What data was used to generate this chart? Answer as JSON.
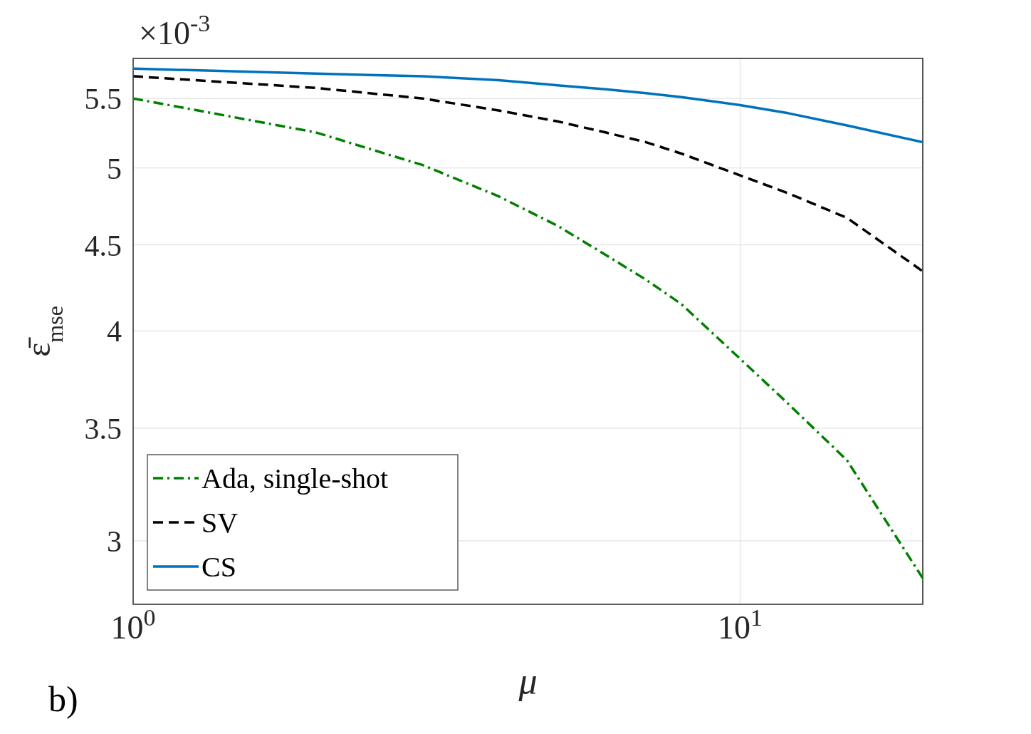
{
  "chart_data": {
    "type": "line",
    "xlabel": "μ",
    "ylabel": "ε̄$_{mse}$",
    "annotations": [
      "×10$^{-3}$",
      "b)"
    ],
    "x": [
      1,
      2,
      3,
      4,
      5,
      6,
      7,
      8,
      10,
      12,
      15,
      20
    ],
    "series": [
      {
        "name": "Ada, single-shot",
        "color": "#008000",
        "line_style": "dashdot",
        "values": [
          5.5,
          5.25,
          5.02,
          4.81,
          4.62,
          4.44,
          4.29,
          4.15,
          3.85,
          3.62,
          3.35,
          2.85
        ]
      },
      {
        "name": "SV",
        "color": "#000000",
        "line_style": "dashed",
        "values": [
          5.67,
          5.58,
          5.5,
          5.41,
          5.33,
          5.25,
          5.18,
          5.1,
          4.95,
          4.83,
          4.67,
          4.34
        ]
      },
      {
        "name": "CS",
        "color": "#0072bd",
        "line_style": "solid",
        "values": [
          5.73,
          5.69,
          5.67,
          5.64,
          5.6,
          5.57,
          5.54,
          5.51,
          5.45,
          5.39,
          5.3,
          5.18
        ]
      }
    ],
    "log": "xy",
    "xlim": [
      1,
      20
    ],
    "ylim": [
      2.75,
      5.81
    ],
    "xticks": [
      {
        "value": 1,
        "label": "10$^{0}$"
      },
      {
        "value": 10,
        "label": "10$^{1}$"
      }
    ],
    "yticks": [
      3,
      3.5,
      4,
      4.5,
      5,
      5.5
    ],
    "grid": true,
    "legend": "bottom left"
  }
}
